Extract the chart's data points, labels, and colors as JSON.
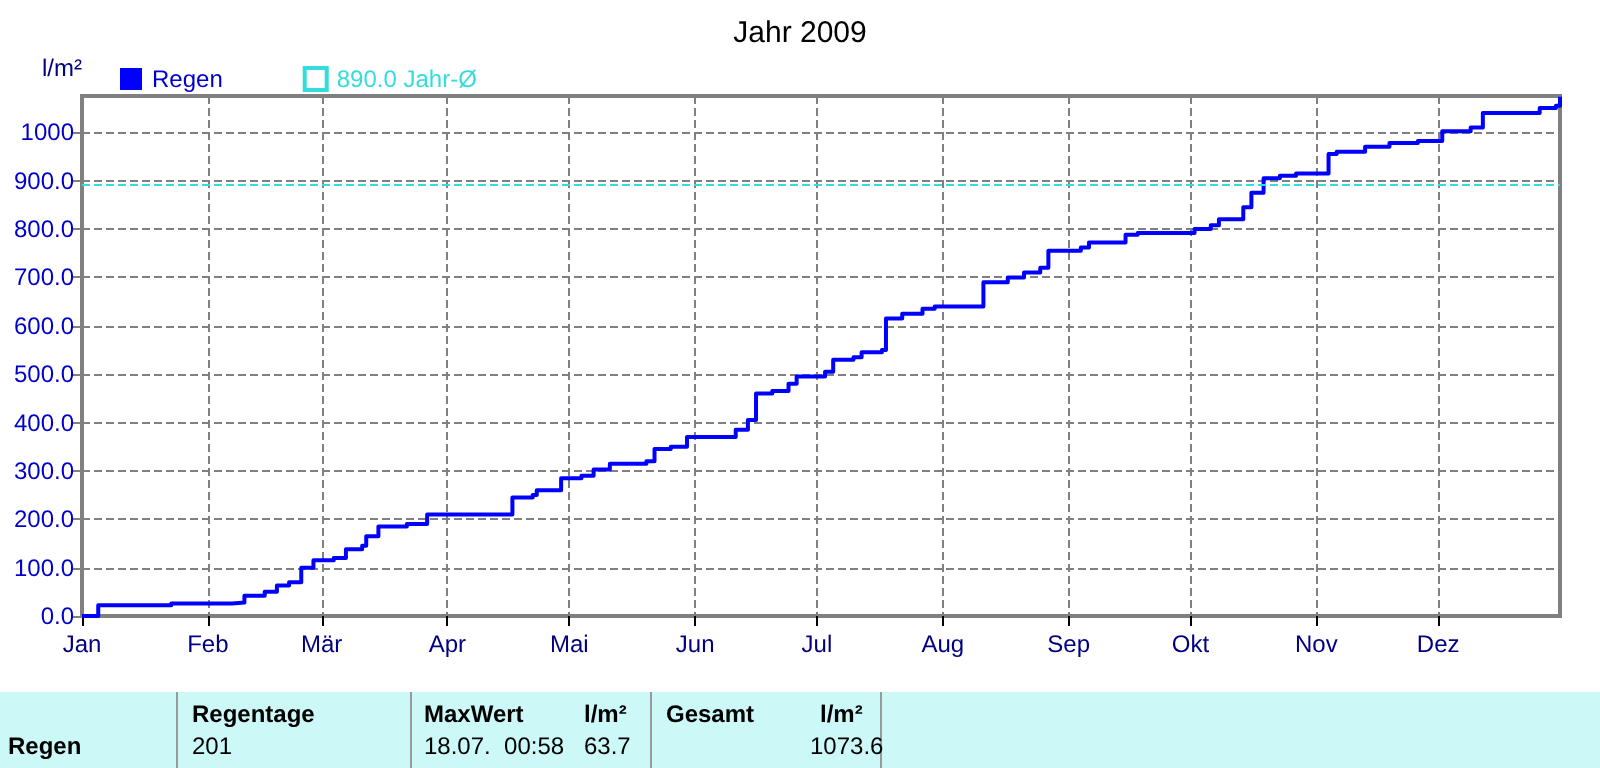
{
  "chart_data": {
    "type": "step",
    "title": "Jahr 2009",
    "ylabel": "l/m²",
    "x": [
      "2009-01-01",
      "2009-01-05",
      "2009-01-23",
      "2009-02-07",
      "2009-02-10",
      "2009-02-15",
      "2009-02-18",
      "2009-02-21",
      "2009-02-24",
      "2009-02-27",
      "2009-03-04",
      "2009-03-07",
      "2009-03-11",
      "2009-03-12",
      "2009-03-15",
      "2009-03-22",
      "2009-03-27",
      "2009-04-17",
      "2009-04-22",
      "2009-04-23",
      "2009-04-29",
      "2009-05-04",
      "2009-05-07",
      "2009-05-11",
      "2009-05-20",
      "2009-05-22",
      "2009-05-26",
      "2009-05-30",
      "2009-06-11",
      "2009-06-14",
      "2009-06-16",
      "2009-06-20",
      "2009-06-24",
      "2009-06-26",
      "2009-07-03",
      "2009-07-05",
      "2009-07-10",
      "2009-07-12",
      "2009-07-17",
      "2009-07-18",
      "2009-07-22",
      "2009-07-27",
      "2009-07-30",
      "2009-08-11",
      "2009-08-17",
      "2009-08-21",
      "2009-08-25",
      "2009-08-27",
      "2009-09-04",
      "2009-09-06",
      "2009-09-15",
      "2009-09-18",
      "2009-10-02",
      "2009-10-06",
      "2009-10-08",
      "2009-10-14",
      "2009-10-16",
      "2009-10-19",
      "2009-10-23",
      "2009-10-27",
      "2009-11-04",
      "2009-11-06",
      "2009-11-13",
      "2009-11-19",
      "2009-11-26",
      "2009-12-02",
      "2009-12-09",
      "2009-12-12",
      "2009-12-26",
      "2009-12-30",
      "2009-12-31"
    ],
    "series": [
      {
        "name": "Regen",
        "color": "#0000ff",
        "values": [
          0,
          22,
          26,
          28,
          42,
          50,
          63,
          70,
          100,
          115,
          120,
          138,
          145,
          165,
          185,
          190,
          210,
          245,
          250,
          260,
          285,
          290,
          303,
          315,
          320,
          345,
          350,
          370,
          385,
          405,
          460,
          465,
          480,
          495,
          505,
          530,
          535,
          545,
          550,
          615,
          625,
          635,
          640,
          690,
          700,
          710,
          720,
          755,
          762,
          772,
          788,
          792,
          800,
          808,
          820,
          845,
          875,
          905,
          910,
          915,
          955,
          960,
          970,
          978,
          982,
          1002,
          1010,
          1040,
          1050,
          1055,
          1073.6
        ]
      }
    ],
    "xlim": [
      "2009-01-01",
      "2009-12-31"
    ],
    "xticks": [
      {
        "value": "2009-01-01",
        "label": "Jan"
      },
      {
        "value": "2009-02-01",
        "label": "Feb"
      },
      {
        "value": "2009-03-01",
        "label": "Mär"
      },
      {
        "value": "2009-04-01",
        "label": "Apr"
      },
      {
        "value": "2009-05-01",
        "label": "Mai"
      },
      {
        "value": "2009-06-01",
        "label": "Jun"
      },
      {
        "value": "2009-07-01",
        "label": "Jul"
      },
      {
        "value": "2009-08-01",
        "label": "Aug"
      },
      {
        "value": "2009-09-01",
        "label": "Sep"
      },
      {
        "value": "2009-10-01",
        "label": "Okt"
      },
      {
        "value": "2009-11-01",
        "label": "Nov"
      },
      {
        "value": "2009-12-01",
        "label": "Dez"
      }
    ],
    "ylim": [
      0,
      1075
    ],
    "yticks": [
      {
        "value": 0,
        "label": "0.0"
      },
      {
        "value": 100,
        "label": "100.0"
      },
      {
        "value": 200,
        "label": "200.0"
      },
      {
        "value": 300,
        "label": "300.0"
      },
      {
        "value": 400,
        "label": "400.0"
      },
      {
        "value": 500,
        "label": "500.0"
      },
      {
        "value": 600,
        "label": "600.0"
      },
      {
        "value": 700,
        "label": "700.0"
      },
      {
        "value": 800,
        "label": "800.0"
      },
      {
        "value": 900,
        "label": "900.0"
      },
      1000
    ],
    "ref_lines": [
      {
        "axis": "y",
        "value": 890,
        "label": "890.0 Jahr-Ø",
        "color": "#33dddd",
        "line_style": "dashed"
      }
    ],
    "grid": true,
    "legend": "top left",
    "marker": "none",
    "line_style": "solid",
    "annotations": [
      "Regen",
      "Regentage",
      "201",
      "MaxWert",
      "18.07.  00:58",
      "l/m²",
      "63.7",
      "Gesamt",
      "l/m²",
      "1073.6"
    ]
  }
}
